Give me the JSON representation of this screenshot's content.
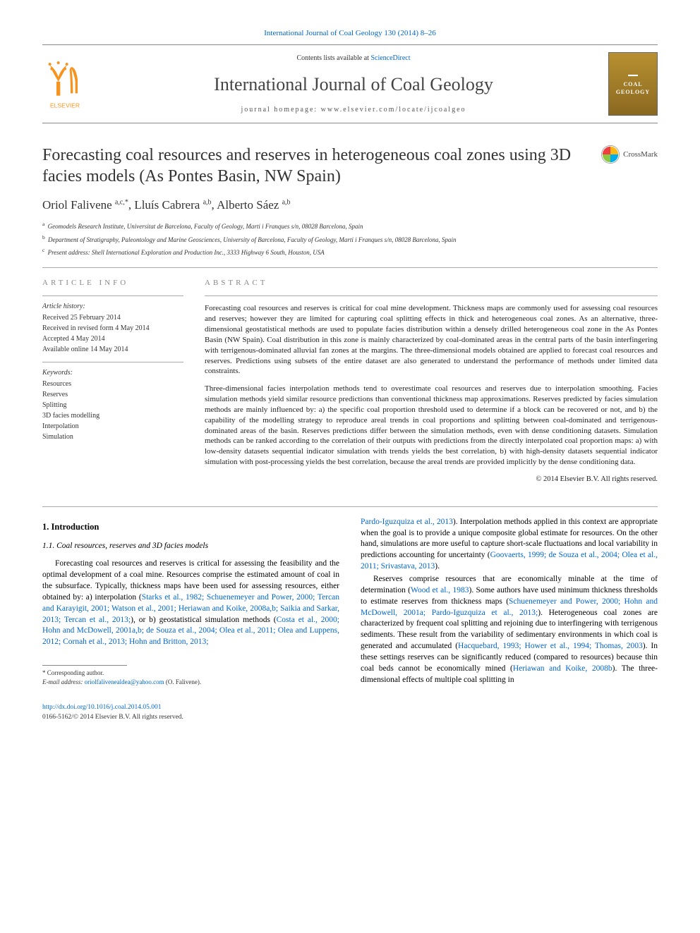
{
  "journal_ref": {
    "text": "International Journal of Coal Geology 130 (2014) 8–26",
    "color": "#0066cc",
    "fontsize": 11
  },
  "header": {
    "contents_prefix": "Contents lists available at ",
    "contents_link": "ScienceDirect",
    "journal_title": "International Journal of Coal Geology",
    "homepage_label": "journal homepage: ",
    "homepage_url": "www.elsevier.com/locate/ijcoalgeo",
    "cover_text_1": "COAL",
    "cover_text_2": "GEOLOGY"
  },
  "elsevier_logo": {
    "tree_color": "#f7941e",
    "text": "ELSEVIER",
    "text_color": "#f7941e"
  },
  "crossmark": {
    "label": "CrossMark",
    "circle_colors": [
      "#ef3e42",
      "#00aeef",
      "#fdb813",
      "#8dc63f"
    ]
  },
  "article": {
    "title": "Forecasting coal resources and reserves in heterogeneous coal zones using 3D facies models (As Pontes Basin, NW Spain)",
    "title_fontsize": 24,
    "title_color": "#333333"
  },
  "authors": {
    "list": "Oriol Falivene ",
    "a1_sup": "a,c,",
    "star": "*",
    "sep1": ", Lluís Cabrera ",
    "a2_sup": "a,b",
    "sep2": ", Alberto Sáez ",
    "a3_sup": "a,b",
    "fontsize": 17
  },
  "affiliations": [
    {
      "sup": "a",
      "text": "Geomodels Research Institute, Universitat de Barcelona, Faculty of Geology, Marti i Franques s/n, 08028 Barcelona, Spain"
    },
    {
      "sup": "b",
      "text": "Department of Stratigraphy, Paleontology and Marine Geosciences, University of Barcelona, Faculty of Geology, Marti i Franques s/n, 08028 Barcelona, Spain"
    },
    {
      "sup": "c",
      "text": "Present address: Shell International Exploration and Production Inc., 3333 Highway 6 South, Houston, USA"
    }
  ],
  "article_info": {
    "heading": "article info",
    "history_label": "Article history:",
    "history": [
      "Received 25 February 2014",
      "Received in revised form 4 May 2014",
      "Accepted 4 May 2014",
      "Available online 14 May 2014"
    ],
    "keywords_label": "Keywords:",
    "keywords": [
      "Resources",
      "Reserves",
      "Splitting",
      "3D facies modelling",
      "Interpolation",
      "Simulation"
    ]
  },
  "abstract": {
    "heading": "abstract",
    "para1": "Forecasting coal resources and reserves is critical for coal mine development. Thickness maps are commonly used for assessing coal resources and reserves; however they are limited for capturing coal splitting effects in thick and heterogeneous coal zones. As an alternative, three-dimensional geostatistical methods are used to populate facies distribution within a densely drilled heterogeneous coal zone in the As Pontes Basin (NW Spain). Coal distribution in this zone is mainly characterized by coal-dominated areas in the central parts of the basin interfingering with terrigenous-dominated alluvial fan zones at the margins. The three-dimensional models obtained are applied to forecast coal resources and reserves. Predictions using subsets of the entire dataset are also generated to understand the performance of methods under limited data constraints.",
    "para2": "Three-dimensional facies interpolation methods tend to overestimate coal resources and reserves due to interpolation smoothing. Facies simulation methods yield similar resource predictions than conventional thickness map approximations. Reserves predicted by facies simulation methods are mainly influenced by: a) the specific coal proportion threshold used to determine if a block can be recovered or not, and b) the capability of the modelling strategy to reproduce areal trends in coal proportions and splitting between coal-dominated and terrigenous-dominated areas of the basin. Reserves predictions differ between the simulation methods, even with dense conditioning datasets. Simulation methods can be ranked according to the correlation of their outputs with predictions from the directly interpolated coal proportion maps: a) with low-density datasets sequential indicator simulation with trends yields the best correlation, b) with high-density datasets sequential indicator simulation with post-processing yields the best correlation, because the areal trends are provided implicitly by the dense conditioning data.",
    "copyright": "© 2014 Elsevier B.V. All rights reserved.",
    "fontsize": 11
  },
  "body": {
    "section_number": "1.",
    "section_title": "Introduction",
    "subsection_number": "1.1.",
    "subsection_title": "Coal resources, reserves and 3D facies models",
    "col1_para1_a": "Forecasting coal resources and reserves is critical for assessing the feasibility and the optimal development of a coal mine. Resources comprise the estimated amount of coal in the subsurface. Typically, thickness maps have been used for assessing resources, either obtained by: a) interpolation (",
    "col1_ref1": "Starks et al., 1982; Schuenemeyer and Power, 2000; Tercan and Karayigit, 2001; Watson et al., 2001; Heriawan and Koike, 2008a,b; Saikia and Sarkar, 2013; Tercan et al., 2013;",
    "col1_para1_b": "), or b) geostatistical simulation methods (",
    "col1_ref2": "Costa et al., 2000; Hohn and McDowell, 2001a,b; de Souza et al., 2004; Olea et al., 2011; Olea and Luppens, 2012; Cornah et al., 2013; Hohn and Britton, 2013;",
    "col2_ref1": "Pardo-Iguzquiza et al., 2013",
    "col2_para1_a": "). Interpolation methods applied in this context are appropriate when the goal is to provide a unique composite global estimate for resources. On the other hand, simulations are more useful to capture short-scale fluctuations and local variability in predictions accounting for uncertainty (",
    "col2_ref2": "Goovaerts, 1999; de Souza et al., 2004; Olea et al., 2011; Srivastava, 2013",
    "col2_para1_b": ").",
    "col2_para2_a": "Reserves comprise resources that are economically minable at the time of determination (",
    "col2_ref3": "Wood et al., 1983",
    "col2_para2_b": "). Some authors have used minimum thickness thresholds to estimate reserves from thickness maps (",
    "col2_ref4": "Schuenemeyer and Power, 2000; Hohn and McDowell, 2001a; Pardo-Iguzquiza et al., 2013;",
    "col2_para2_c": "). Heterogeneous coal zones are characterized by frequent coal splitting and rejoining due to interfingering with terrigenous sediments. These result from the variability of sedimentary environments in which coal is generated and accumulated (",
    "col2_ref5": "Hacquebard, 1993; Hower et al., 1994; Thomas, 2003",
    "col2_para2_d": "). In these settings reserves can be significantly reduced (compared to resources) because thin coal beds cannot be economically mined (",
    "col2_ref6": "Heriawan and Koike, 2008b",
    "col2_para2_e": "). The three-dimensional effects of multiple coal splitting in"
  },
  "footnote": {
    "corr_label": "* Corresponding author.",
    "email_label": "E-mail address: ",
    "email": "oriolfalivenealdea@yahoo.com",
    "email_suffix": " (O. Falivene)."
  },
  "doi": {
    "url": "http://dx.doi.org/10.1016/j.coal.2014.05.001",
    "issn_line": "0166-5162/© 2014 Elsevier B.V. All rights reserved."
  },
  "colors": {
    "link": "#0066cc",
    "text": "#222222",
    "heading_gray": "#888888",
    "rule": "#aaaaaa"
  }
}
